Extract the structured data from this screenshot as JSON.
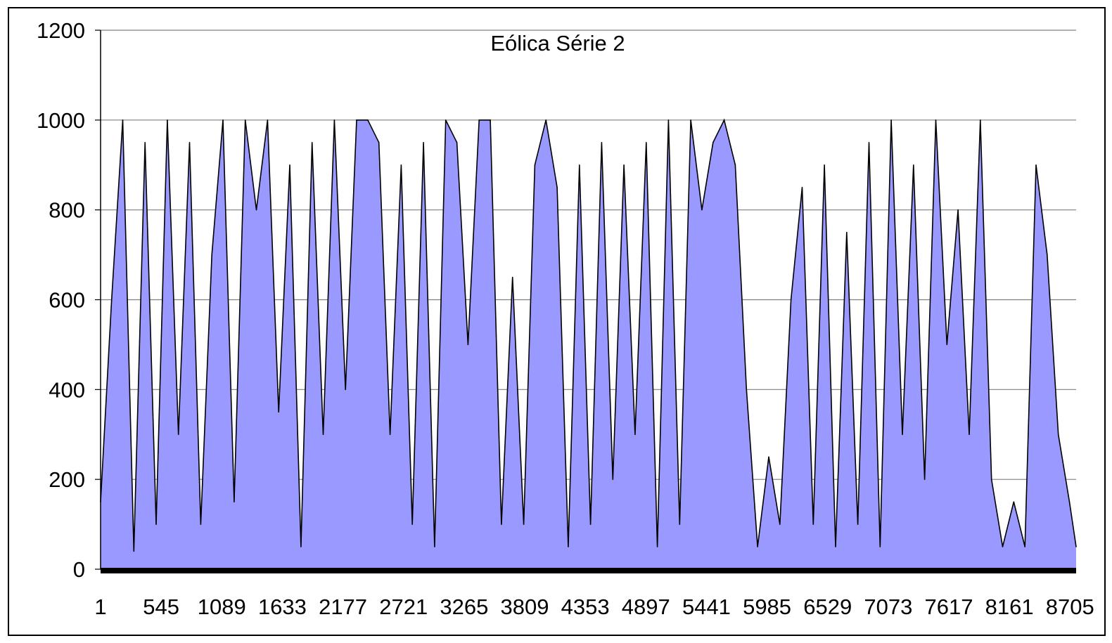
{
  "chart_data": {
    "type": "area",
    "title": "Eólica Série 2",
    "xlabel": "",
    "ylabel": "",
    "x_range": [
      1,
      8760
    ],
    "ylim": [
      0,
      1200
    ],
    "y_ticks": [
      "0",
      "200",
      "400",
      "600",
      "800",
      "1000",
      "1200"
    ],
    "x_tick_values": [
      1,
      545,
      1089,
      1633,
      2177,
      2721,
      3265,
      3809,
      4353,
      4897,
      5441,
      5985,
      6529,
      7073,
      7617,
      8161,
      8705
    ],
    "x_ticks": [
      "1",
      "545",
      "1089",
      "1633",
      "2177",
      "2721",
      "3265",
      "3809",
      "4353",
      "4897",
      "5441",
      "5985",
      "6529",
      "7073",
      "7617",
      "8161",
      "8705"
    ],
    "grid": "horizontal",
    "legend": "none",
    "colors": {
      "fill": "#9999ff",
      "line": "#000000",
      "grid": "#808080"
    },
    "series": [
      {
        "x": [
          1,
          100,
          200,
          300,
          400,
          500,
          600,
          700,
          800,
          900,
          1000,
          1100,
          1200,
          1300,
          1400,
          1500,
          1600,
          1700,
          1800,
          1900,
          2000,
          2100,
          2200,
          2300,
          2400,
          2500,
          2600,
          2700,
          2800,
          2900,
          3000,
          3100,
          3200,
          3300,
          3400,
          3500,
          3600,
          3700,
          3800,
          3900,
          4000,
          4100,
          4200,
          4300,
          4400,
          4500,
          4600,
          4700,
          4800,
          4900,
          5000,
          5100,
          5200,
          5300,
          5400,
          5500,
          5600,
          5700,
          5800,
          5900,
          6000,
          6100,
          6200,
          6300,
          6400,
          6500,
          6600,
          6700,
          6800,
          6900,
          7000,
          7100,
          7200,
          7300,
          7400,
          7500,
          7600,
          7700,
          7800,
          7900,
          8000,
          8100,
          8200,
          8300,
          8400,
          8500,
          8600,
          8700,
          8760
        ],
        "values": [
          150,
          600,
          1000,
          40,
          950,
          100,
          1000,
          300,
          950,
          100,
          700,
          1000,
          150,
          1000,
          800,
          1000,
          350,
          900,
          50,
          950,
          300,
          1000,
          400,
          1000,
          1000,
          950,
          300,
          900,
          100,
          950,
          50,
          1000,
          950,
          500,
          1000,
          1000,
          100,
          650,
          100,
          900,
          1000,
          850,
          50,
          900,
          100,
          950,
          200,
          900,
          300,
          950,
          50,
          1000,
          100,
          1000,
          800,
          950,
          1000,
          900,
          400,
          50,
          250,
          100,
          600,
          850,
          100,
          900,
          50,
          750,
          100,
          950,
          50,
          1000,
          300,
          900,
          200,
          1000,
          500,
          800,
          300,
          1000,
          200,
          50,
          150,
          50,
          900,
          700,
          300,
          150,
          50
        ]
      }
    ]
  }
}
